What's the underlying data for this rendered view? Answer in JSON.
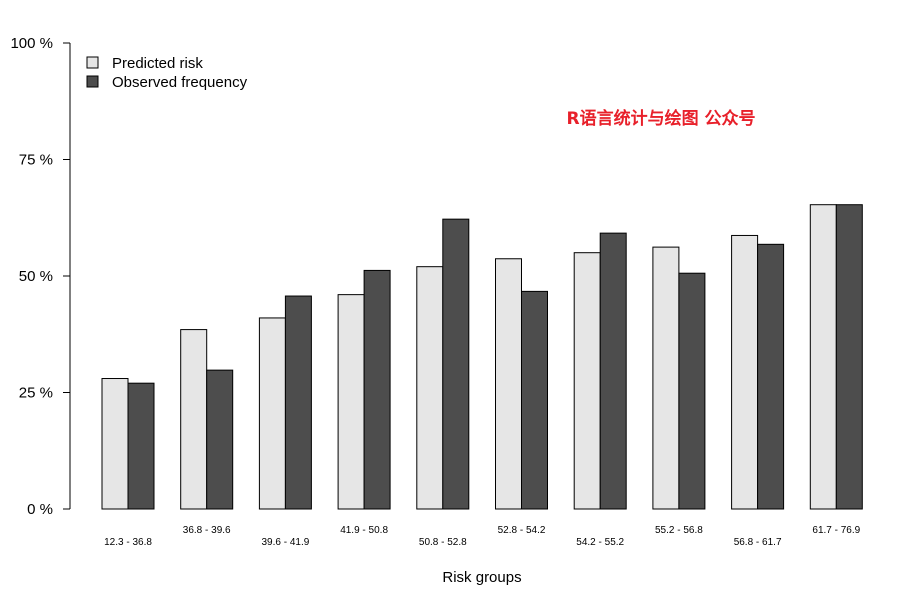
{
  "chart_data": {
    "type": "bar",
    "title": "",
    "xlabel": "Risk groups",
    "ylabel": "",
    "ylim": [
      0,
      100
    ],
    "y_ticks": [
      0,
      25,
      50,
      75,
      100
    ],
    "y_tick_labels": [
      "0 %",
      "25 %",
      "50 %",
      "75 %",
      "100 %"
    ],
    "categories": [
      "12.3 - 36.8",
      "36.8 - 39.6",
      "39.6 - 41.9",
      "41.9 - 50.8",
      "50.8 - 52.8",
      "52.8 - 54.2",
      "54.2 - 55.2",
      "55.2 - 56.8",
      "56.8 - 61.7",
      "61.7 - 76.9"
    ],
    "series": [
      {
        "name": "Predicted risk",
        "color": "#e6e6e6",
        "values": [
          28.0,
          38.5,
          41.0,
          46.0,
          52.0,
          53.7,
          55.0,
          56.2,
          58.7,
          65.3
        ]
      },
      {
        "name": "Observed frequency",
        "color": "#4d4d4d",
        "values": [
          27.0,
          29.8,
          45.7,
          51.2,
          62.2,
          46.7,
          59.2,
          50.6,
          56.8,
          65.3
        ]
      }
    ],
    "legend_position": "top-left",
    "grid": false
  },
  "watermark": {
    "text": "R语言统计与绘图 公众号",
    "color": "#e8202a"
  }
}
